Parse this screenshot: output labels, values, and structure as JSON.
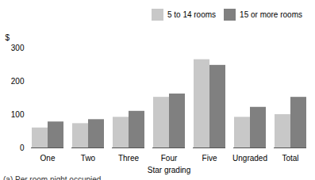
{
  "chart_data": {
    "type": "bar",
    "categories": [
      "One",
      "Two",
      "Three",
      "Four",
      "Five",
      "Ungraded",
      "Total"
    ],
    "series": [
      {
        "name": "5 to 14 rooms",
        "color": "#c8c8c8",
        "values": [
          60,
          73,
          92,
          152,
          265,
          92,
          100
        ]
      },
      {
        "name": "15 or more rooms",
        "color": "#808080",
        "values": [
          78,
          85,
          110,
          162,
          248,
          122,
          152
        ]
      }
    ],
    "xlabel": "Star grading",
    "ylabel": "$",
    "footnote": "(a) Per room night occupied",
    "ylim": [
      0,
      300
    ],
    "yticks": [
      0,
      100,
      200,
      300
    ],
    "legend": "upper right",
    "grid": false
  }
}
